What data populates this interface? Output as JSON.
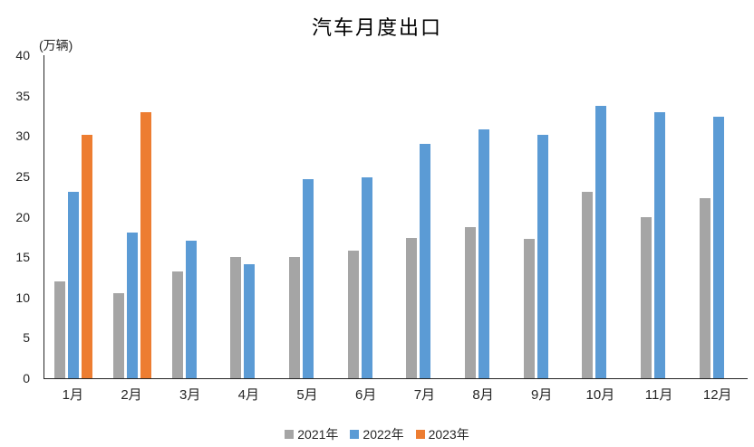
{
  "chart_data": {
    "type": "bar",
    "title": "汽车月度出口",
    "ylabel": "(万辆)",
    "xlabel": "",
    "categories": [
      "1月",
      "2月",
      "3月",
      "4月",
      "5月",
      "6月",
      "7月",
      "8月",
      "9月",
      "10月",
      "11月",
      "12月"
    ],
    "series": [
      {
        "name": "2021年",
        "color": "#A5A5A5",
        "values": [
          12.0,
          10.5,
          13.2,
          15.0,
          15.0,
          15.8,
          17.4,
          18.7,
          17.3,
          23.1,
          20.0,
          22.3
        ]
      },
      {
        "name": "2022年",
        "color": "#5B9BD5",
        "values": [
          23.1,
          18.0,
          17.0,
          14.1,
          24.7,
          24.9,
          29.0,
          30.8,
          30.1,
          33.7,
          32.9,
          32.4
        ]
      },
      {
        "name": "2023年",
        "color": "#ED7D31",
        "values": [
          30.1,
          32.9,
          null,
          null,
          null,
          null,
          null,
          null,
          null,
          null,
          null,
          null
        ]
      }
    ],
    "ylim": [
      0,
      40
    ],
    "ytick_step": 5,
    "grid": false,
    "legend_position": "bottom",
    "axis_color": "#262626"
  }
}
